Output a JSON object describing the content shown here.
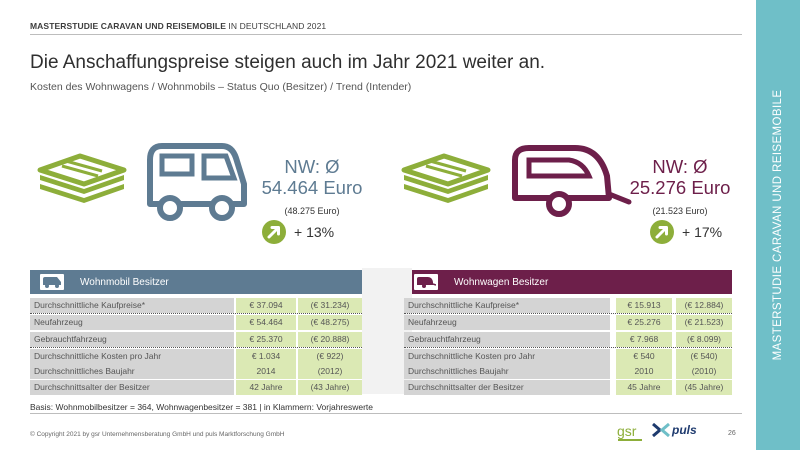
{
  "header": {
    "bold": "MASTERSTUDIE CARAVAN UND REISEMOBILE",
    "rest": " IN DEUTSCHLAND 2021"
  },
  "title": "Die Anschaffungspreise steigen auch im Jahr 2021 weiter an.",
  "subtitle": "Kosten des Wohnwagens / Wohnmobils – Status Quo (Besitzer) / Trend (Intender)",
  "sidebar": {
    "text": "MASTERSTUDIE CARAVAN UND REISEMOBILE"
  },
  "colors": {
    "motorhome": "#5e7b92",
    "caravan": "#6d1f4a",
    "money": "#8dae3a",
    "sidebar": "#6fbfc8",
    "value_cell": "#dbe9b4",
    "label_cell": "#d4d4d4"
  },
  "motorhome": {
    "icon": "motorhome-icon",
    "nw_label": "NW: Ø",
    "amount": "54.464 Euro",
    "prev": "(48.275 Euro)",
    "trend": "+ 13%",
    "table_title": "Wohnmobil Besitzer",
    "rows": [
      {
        "label": "Durchschnittliche Kaufpreise*",
        "value": "€ 37.094",
        "prev": "(€ 31.234)"
      },
      {
        "label": "Neufahrzeug",
        "value": "€ 54.464",
        "prev": "(€ 48.275)"
      },
      {
        "label": "Gebrauchtfahrzeug",
        "value": "€ 25.370",
        "prev": "(€ 20.888)"
      },
      {
        "label": "Durchschnittliche Kosten pro Jahr",
        "value": "€ 1.034",
        "prev": "(€ 922)"
      },
      {
        "label": "Durchschnittliches Baujahr",
        "value": "2014",
        "prev": "(2012)"
      },
      {
        "label": "Durchschnittsalter der Besitzer",
        "value": "42 Jahre",
        "prev": "(43 Jahre)"
      }
    ]
  },
  "caravan": {
    "icon": "caravan-icon",
    "nw_label": "NW: Ø",
    "amount": "25.276 Euro",
    "prev": "(21.523 Euro)",
    "trend": "+ 17%",
    "table_title": "Wohnwagen Besitzer",
    "rows": [
      {
        "label": "Durchschnittliche Kaufpreise*",
        "value": "€ 15.913",
        "prev": "(€ 12.884)"
      },
      {
        "label": "Neufahrzeug",
        "value": "€ 25.276",
        "prev": "(€ 21.523)"
      },
      {
        "label": "Gebrauchtfahrzeug",
        "value": "€ 7.968",
        "prev": "(€ 8.099)"
      },
      {
        "label": "Durchschnittliche Kosten pro Jahr",
        "value": "€ 540",
        "prev": "(€ 540)"
      },
      {
        "label": "Durchschnittliches Baujahr",
        "value": "2010",
        "prev": "(2010)"
      },
      {
        "label": "Durchschnittsalter der Besitzer",
        "value": "45 Jahre",
        "prev": "(45 Jahre)"
      }
    ]
  },
  "basis": "Basis: Wohnmobilbesitzer = 364, Wohnwagenbesitzer = 381 | in Klammern: Vorjahreswerte",
  "footer": {
    "copyright": "© Copyright 2021 by gsr Unternehmensberatung GmbH und puls Marktforschung GmbH",
    "page": "26",
    "logo_gsr": "gsr",
    "logo_puls": "puls"
  }
}
